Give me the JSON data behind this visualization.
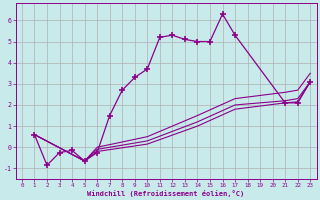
{
  "xlabel": "Windchill (Refroidissement éolien,°C)",
  "bg_color": "#c8eaea",
  "line_color": "#8b008b",
  "grid_color": "#b0b0b0",
  "xlim": [
    -0.5,
    23.5
  ],
  "ylim": [
    -1.5,
    6.8
  ],
  "yticks": [
    -1,
    0,
    1,
    2,
    3,
    4,
    5,
    6
  ],
  "xticks": [
    0,
    1,
    2,
    3,
    4,
    5,
    6,
    7,
    8,
    9,
    10,
    11,
    12,
    13,
    14,
    15,
    16,
    17,
    18,
    19,
    20,
    21,
    22,
    23
  ],
  "lines": [
    {
      "x": [
        1,
        2,
        3,
        4,
        5,
        6,
        7,
        8,
        9,
        10,
        11,
        12,
        13,
        14,
        15,
        16,
        17,
        21,
        22,
        23
      ],
      "y": [
        0.6,
        -0.85,
        -0.25,
        -0.15,
        -0.65,
        -0.25,
        1.5,
        2.7,
        3.3,
        3.7,
        5.2,
        5.3,
        5.1,
        5.0,
        5.0,
        6.3,
        5.3,
        2.1,
        2.1,
        3.1
      ],
      "marker": true
    },
    {
      "x": [
        1,
        5,
        6,
        10,
        14,
        17,
        21,
        22,
        23
      ],
      "y": [
        0.6,
        -0.65,
        -0.2,
        0.15,
        1.0,
        1.8,
        2.1,
        2.15,
        3.1
      ],
      "marker": false
    },
    {
      "x": [
        1,
        5,
        6,
        10,
        14,
        17,
        21,
        22,
        23
      ],
      "y": [
        0.6,
        -0.65,
        -0.1,
        0.3,
        1.2,
        2.0,
        2.2,
        2.3,
        3.1
      ],
      "marker": false
    },
    {
      "x": [
        1,
        5,
        6,
        10,
        14,
        17,
        21,
        22,
        23
      ],
      "y": [
        0.6,
        -0.65,
        0.0,
        0.5,
        1.5,
        2.3,
        2.6,
        2.7,
        3.5
      ],
      "marker": false
    }
  ]
}
